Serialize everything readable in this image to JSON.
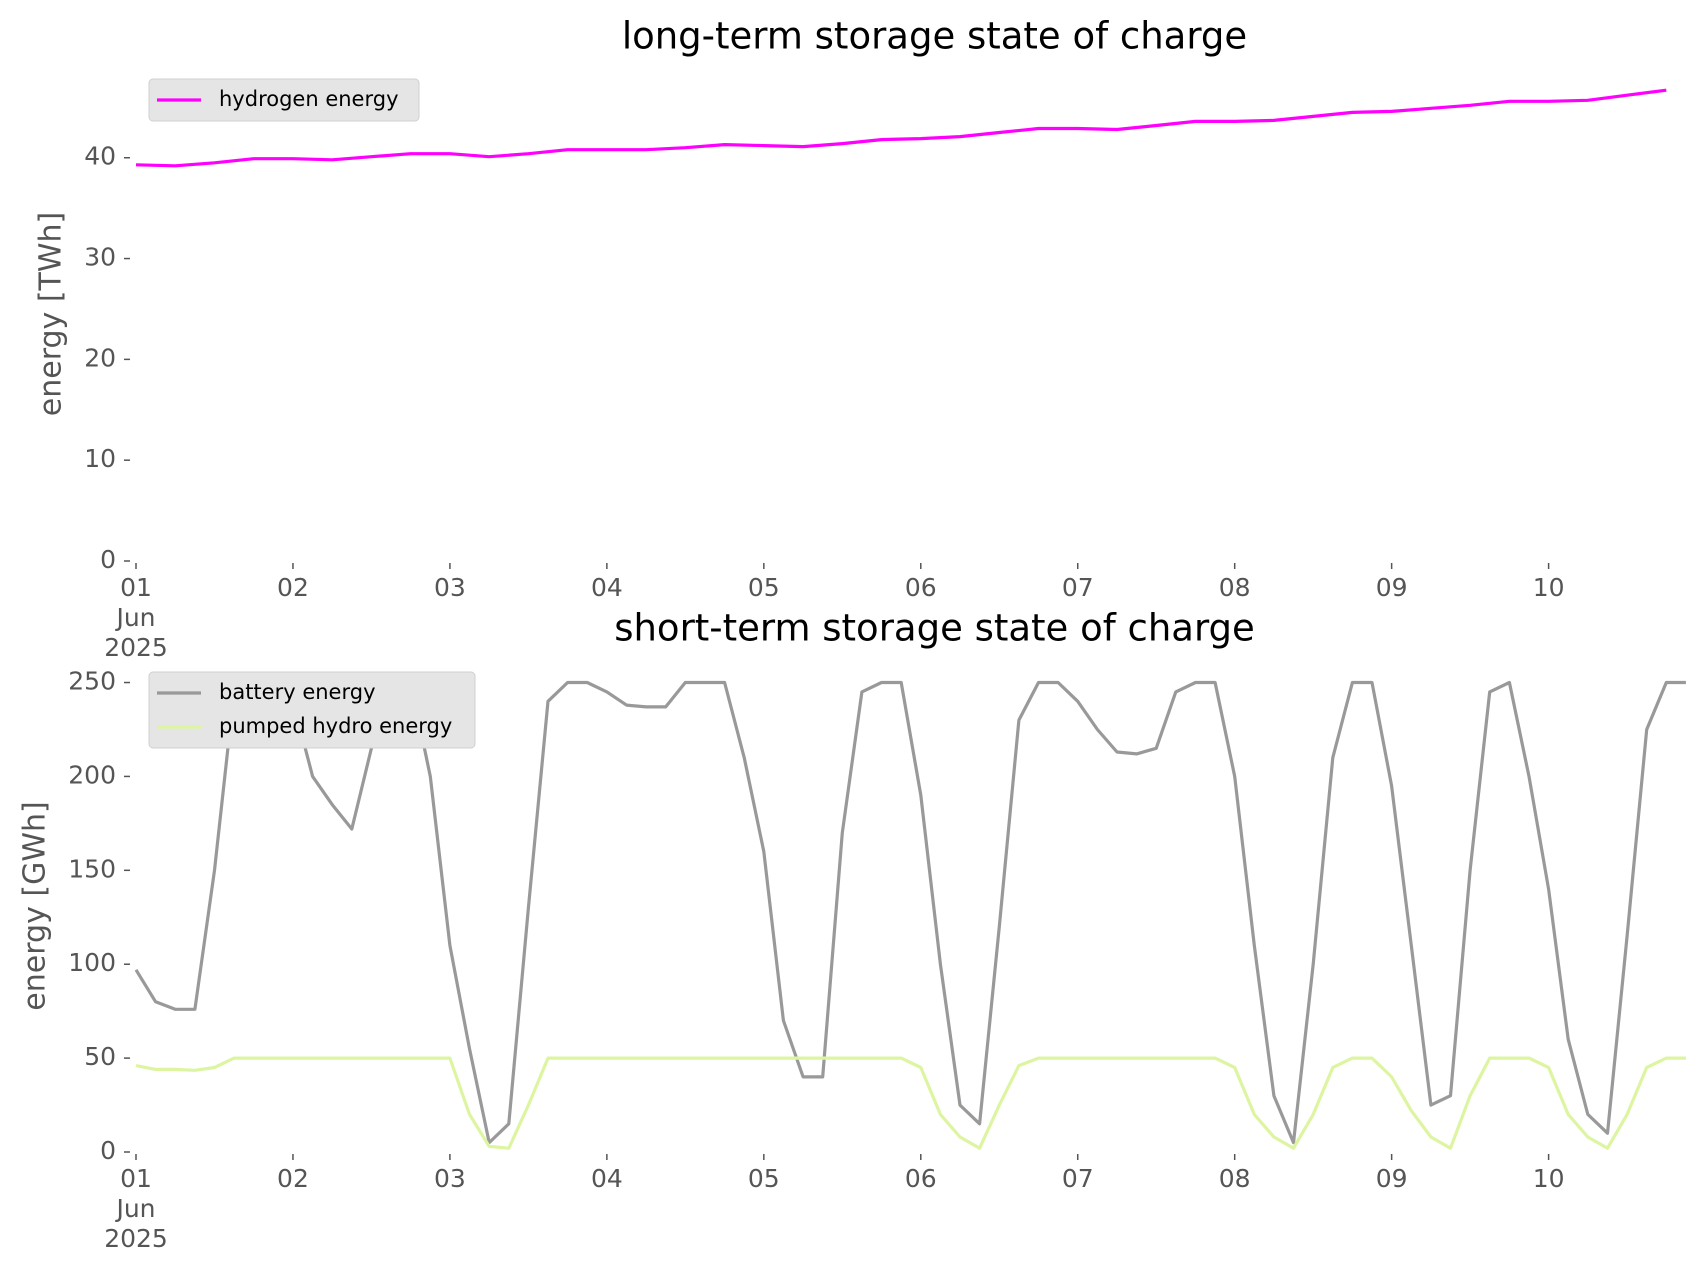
{
  "chart_data": [
    {
      "type": "line",
      "title": "long-term storage state of charge",
      "ylabel": "energy [TWh]",
      "x": [
        1,
        1.25,
        1.5,
        1.75,
        2,
        2.25,
        2.5,
        2.75,
        3,
        3.25,
        3.5,
        3.75,
        4,
        4.25,
        4.5,
        4.75,
        5,
        5.25,
        5.5,
        5.75,
        6,
        6.25,
        6.5,
        6.75,
        7,
        7.25,
        7.5,
        7.75,
        8,
        8.25,
        8.5,
        8.75,
        9,
        9.25,
        9.5,
        9.75,
        10,
        10.25,
        10.5,
        10.75
      ],
      "series": [
        {
          "name": "hydrogen energy",
          "color": "#ff00ff",
          "values": [
            39.3,
            39.2,
            39.5,
            39.9,
            39.9,
            39.8,
            40.1,
            40.4,
            40.4,
            40.1,
            40.4,
            40.8,
            40.8,
            40.8,
            41.0,
            41.3,
            41.2,
            41.1,
            41.4,
            41.8,
            41.9,
            42.1,
            42.5,
            42.9,
            42.9,
            42.8,
            43.2,
            43.6,
            43.6,
            43.7,
            44.1,
            44.5,
            44.6,
            44.9,
            45.2,
            45.6,
            45.6,
            45.7,
            46.2,
            46.7
          ]
        }
      ],
      "xlim": [
        1,
        10.92
      ],
      "ylim": [
        0,
        49
      ],
      "xticks": [
        {
          "value": 1,
          "label": "01\nJun\n2025"
        },
        {
          "value": 2,
          "label": "02"
        },
        {
          "value": 3,
          "label": "03"
        },
        {
          "value": 4,
          "label": "04"
        },
        {
          "value": 5,
          "label": "05"
        },
        {
          "value": 6,
          "label": "06"
        },
        {
          "value": 7,
          "label": "07"
        },
        {
          "value": 8,
          "label": "08"
        },
        {
          "value": 9,
          "label": "09"
        },
        {
          "value": 10,
          "label": "10"
        }
      ],
      "yticks": [
        0,
        10,
        20,
        30,
        40
      ],
      "legend": "upper left"
    },
    {
      "type": "line",
      "title": "short-term storage state of charge",
      "ylabel": "energy [GWh]",
      "x": [
        1,
        1.125,
        1.25,
        1.375,
        1.5,
        1.625,
        1.75,
        1.875,
        2,
        2.125,
        2.25,
        2.375,
        2.5,
        2.625,
        2.75,
        2.875,
        3,
        3.125,
        3.25,
        3.375,
        3.5,
        3.625,
        3.75,
        3.875,
        4,
        4.125,
        4.25,
        4.375,
        4.5,
        4.625,
        4.75,
        4.875,
        5,
        5.125,
        5.25,
        5.375,
        5.5,
        5.625,
        5.75,
        5.875,
        6,
        6.125,
        6.25,
        6.375,
        6.5,
        6.625,
        6.75,
        6.875,
        7,
        7.125,
        7.25,
        7.375,
        7.5,
        7.625,
        7.75,
        7.875,
        8,
        8.125,
        8.25,
        8.375,
        8.5,
        8.625,
        8.75,
        8.875,
        9,
        9.125,
        9.25,
        9.375,
        9.5,
        9.625,
        9.75,
        9.875,
        10,
        10.125,
        10.25,
        10.375,
        10.5,
        10.625,
        10.75,
        10.875
      ],
      "series": [
        {
          "name": "battery energy",
          "color": "#999999",
          "values": [
            97,
            80,
            76,
            76,
            150,
            245,
            250,
            250,
            240,
            200,
            185,
            172,
            215,
            250,
            250,
            200,
            110,
            55,
            5,
            15,
            130,
            240,
            250,
            250,
            245,
            238,
            237,
            237,
            250,
            250,
            250,
            210,
            160,
            70,
            40,
            40,
            170,
            245,
            250,
            250,
            190,
            100,
            25,
            15,
            120,
            230,
            250,
            250,
            240,
            225,
            213,
            212,
            215,
            245,
            250,
            250,
            200,
            110,
            30,
            5,
            100,
            210,
            250,
            250,
            195,
            110,
            25,
            30,
            150,
            245,
            250,
            200,
            140,
            60,
            20,
            10,
            115,
            225,
            250,
            250
          ]
        },
        {
          "name": "pumped hydro energy",
          "color": "#ddf5a0",
          "values": [
            46,
            44,
            44,
            43.5,
            45,
            50,
            50,
            50,
            50,
            50,
            50,
            50,
            50,
            50,
            50,
            50,
            50,
            20,
            3,
            2,
            25,
            50,
            50,
            50,
            50,
            50,
            50,
            50,
            50,
            50,
            50,
            50,
            50,
            50,
            50,
            50,
            50,
            50,
            50,
            50,
            45,
            20,
            8,
            2,
            25,
            46,
            50,
            50,
            50,
            50,
            50,
            50,
            50,
            50,
            50,
            50,
            45,
            20,
            8,
            2,
            20,
            45,
            50,
            50,
            40,
            22,
            8,
            2,
            30,
            50,
            50,
            50,
            45,
            20,
            8,
            2,
            20,
            45,
            50,
            50
          ]
        }
      ],
      "xlim": [
        1,
        10.92
      ],
      "ylim": [
        0,
        262
      ],
      "xticks": [
        {
          "value": 1,
          "label": "01\nJun\n2025"
        },
        {
          "value": 2,
          "label": "02"
        },
        {
          "value": 3,
          "label": "03"
        },
        {
          "value": 4,
          "label": "04"
        },
        {
          "value": 5,
          "label": "05"
        },
        {
          "value": 6,
          "label": "06"
        },
        {
          "value": 7,
          "label": "07"
        },
        {
          "value": 8,
          "label": "08"
        },
        {
          "value": 9,
          "label": "09"
        },
        {
          "value": 10,
          "label": "10"
        }
      ],
      "yticks": [
        0,
        50,
        100,
        150,
        200,
        250
      ],
      "legend": "upper left"
    }
  ]
}
